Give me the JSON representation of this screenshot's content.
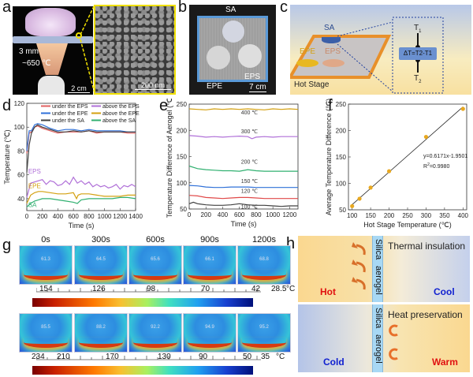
{
  "panels": {
    "a": {
      "label": "a",
      "thickness": "3 mm",
      "flame_temp": "~650 ℃",
      "scale_photo": "2 cm",
      "scale_sem": "200 nm"
    },
    "b": {
      "label": "b",
      "sample_sa": "SA",
      "sample_epe": "EPE",
      "sample_eps": "EPS",
      "scale": "7 cm"
    },
    "c": {
      "label": "c",
      "sample_sa": "SA",
      "sample_epe": "EPE",
      "sample_eps": "EPS",
      "stage": "Hot Stage",
      "t1": "T",
      "t1_sub": "1",
      "t2": "T",
      "t2_sub": "2",
      "formula": "ΔT=T2-T1",
      "colors": {
        "sa": "#3b5fa8",
        "epe": "#e8b820",
        "eps": "#e0a888",
        "stage": "#e8902a"
      }
    },
    "g": {
      "label": "g",
      "times": [
        "0s",
        "300s",
        "600s",
        "900s",
        "1200s"
      ],
      "row1_values": [
        "61.3",
        "64.5",
        "65.6",
        "66.1",
        "68.8"
      ],
      "row1_scale": [
        "154",
        "126",
        "98",
        "70",
        "42",
        "28.5",
        "°C"
      ],
      "row2_values": [
        "85.5",
        "88.2",
        "92.2",
        "94.9",
        "95.2"
      ],
      "row2_scale": [
        "234",
        "210",
        "170",
        "130",
        "90",
        "50",
        "35",
        "°C"
      ]
    },
    "h": {
      "label": "h",
      "top": {
        "title": "Thermal insulation",
        "left": "Hot",
        "right": "Cool",
        "aerogel_1": "Silica",
        "aerogel_2": "aerogel"
      },
      "bottom": {
        "title": "Heat preservation",
        "left": "Cold",
        "right": "Warm",
        "aerogel_1": "Silica",
        "aerogel_2": "aerogel"
      },
      "colors": {
        "hot": "#e01010",
        "cool": "#1020d0",
        "arrow": "#d8702a"
      }
    }
  },
  "chart_data": [
    {
      "id": "d",
      "label": "d",
      "type": "line",
      "title": "",
      "xlabel": "Time (s)",
      "ylabel": "Temperature (℃)",
      "xlim": [
        0,
        1400
      ],
      "ylim": [
        30,
        120
      ],
      "xticks": [
        0,
        200,
        400,
        600,
        800,
        1000,
        1200,
        1400
      ],
      "yticks": [
        40,
        60,
        80,
        100,
        120
      ],
      "legend": "top",
      "annotations": [
        {
          "text": "EPS",
          "x": 100,
          "y": 61,
          "color": "#b070d8"
        },
        {
          "text": "EPE",
          "x": 100,
          "y": 49,
          "color": "#d4a010"
        },
        {
          "text": "SA",
          "x": 100,
          "y": 33,
          "color": "#30b070"
        }
      ],
      "series": [
        {
          "name": "under the EPS",
          "color": "#e06060",
          "x": [
            0,
            30,
            60,
            100,
            140,
            200,
            300,
            400,
            500,
            600,
            700,
            800,
            900,
            1000,
            1100,
            1200,
            1300,
            1400
          ],
          "y": [
            78,
            95,
            96,
            100,
            101,
            99,
            97,
            95,
            96,
            96,
            96,
            97,
            95,
            96,
            96,
            96,
            95,
            95
          ]
        },
        {
          "name": "under the EPE",
          "color": "#2f70d8",
          "x": [
            0,
            30,
            60,
            100,
            140,
            200,
            300,
            400,
            500,
            600,
            700,
            800,
            900,
            1000,
            1100,
            1200,
            1300,
            1400
          ],
          "y": [
            80,
            97,
            97,
            102,
            103,
            102,
            99,
            97,
            98,
            98,
            97,
            98,
            97,
            97,
            97,
            97,
            96,
            96
          ]
        },
        {
          "name": "under the SA",
          "color": "#404040",
          "x": [
            0,
            30,
            60,
            100,
            140,
            200,
            300,
            400,
            500,
            600,
            700,
            800,
            900,
            1000,
            1100,
            1200,
            1300,
            1400
          ],
          "y": [
            62,
            85,
            95,
            100,
            102,
            100,
            98,
            96,
            96,
            97,
            96,
            97,
            96,
            96,
            96,
            96,
            96,
            96
          ]
        },
        {
          "name": "above the EPS",
          "color": "#b070d8",
          "x": [
            0,
            50,
            100,
            150,
            200,
            250,
            300,
            350,
            400,
            450,
            500,
            550,
            600,
            650,
            700,
            750,
            800,
            850,
            900,
            950,
            1000,
            1050,
            1100,
            1150,
            1200,
            1250,
            1300,
            1350,
            1400
          ],
          "y": [
            41,
            53,
            54,
            55,
            56,
            52,
            55,
            54,
            51,
            52,
            55,
            52,
            58,
            53,
            55,
            52,
            54,
            50,
            52,
            50,
            51,
            49,
            50,
            52,
            48,
            51,
            50,
            52,
            50
          ]
        },
        {
          "name": "above the EPE",
          "color": "#d4a010",
          "x": [
            0,
            50,
            100,
            150,
            200,
            300,
            400,
            500,
            600,
            640,
            660,
            700,
            800,
            900,
            1000,
            1100,
            1200,
            1300,
            1400
          ],
          "y": [
            36,
            43,
            45,
            46,
            46,
            45,
            44,
            44,
            45,
            40,
            43,
            44,
            44,
            43,
            42,
            42,
            42,
            43,
            43
          ]
        },
        {
          "name": "above the SA",
          "color": "#30b070",
          "x": [
            0,
            50,
            100,
            150,
            200,
            300,
            400,
            500,
            600,
            650,
            700,
            800,
            900,
            1000,
            1100,
            1200,
            1300,
            1400
          ],
          "y": [
            33,
            36,
            38,
            39,
            40,
            40,
            39,
            38,
            37,
            36,
            39,
            40,
            40,
            40,
            40,
            41,
            41,
            40
          ]
        }
      ]
    },
    {
      "id": "e",
      "label": "e",
      "type": "line",
      "title": "",
      "xlabel": "Time (s)",
      "ylabel": "Temperature Difference of Aerogel (℃)",
      "xlim": [
        0,
        1300
      ],
      "ylim": [
        50,
        250
      ],
      "xticks": [
        0,
        200,
        400,
        600,
        800,
        1000,
        1200
      ],
      "yticks": [
        50,
        100,
        150,
        200,
        250
      ],
      "series": [
        {
          "name": "400 ℃",
          "color": "#d4a010",
          "x": [
            0,
            100,
            200,
            300,
            400,
            500,
            600,
            700,
            800,
            900,
            1000,
            1100,
            1200,
            1300
          ],
          "y": [
            241,
            240,
            239,
            241,
            240,
            241,
            240,
            241,
            240,
            239,
            241,
            240,
            241,
            240
          ]
        },
        {
          "name": "300 ℃",
          "color": "#b070d8",
          "x": [
            0,
            100,
            200,
            300,
            400,
            500,
            600,
            700,
            750,
            800,
            900,
            1000,
            1100,
            1200,
            1300
          ],
          "y": [
            190,
            189,
            187,
            188,
            187,
            188,
            189,
            188,
            184,
            187,
            188,
            187,
            188,
            188,
            188
          ]
        },
        {
          "name": "200 ℃",
          "color": "#30b070",
          "x": [
            0,
            100,
            200,
            300,
            400,
            500,
            600,
            700,
            800,
            900,
            1000,
            1100,
            1200,
            1300
          ],
          "y": [
            132,
            127,
            125,
            124,
            123,
            123,
            122,
            125,
            123,
            122,
            122,
            122,
            122,
            122
          ]
        },
        {
          "name": "150 ℃",
          "color": "#2f70d8",
          "x": [
            0,
            100,
            200,
            300,
            400,
            500,
            600,
            700,
            800,
            900,
            1000,
            1100,
            1200,
            1300
          ],
          "y": [
            95,
            94,
            92,
            91,
            91,
            92,
            92,
            92,
            91,
            91,
            91,
            91,
            91,
            91
          ]
        },
        {
          "name": "120 ℃",
          "color": "#e04848",
          "x": [
            0,
            100,
            200,
            300,
            400,
            500,
            600,
            700,
            800,
            900,
            1000,
            1100,
            1200,
            1300
          ],
          "y": [
            76,
            75,
            72,
            71,
            70,
            71,
            72,
            72,
            71,
            70,
            70,
            70,
            70,
            70
          ]
        },
        {
          "name": "100 ℃",
          "color": "#404040",
          "x": [
            0,
            50,
            100,
            200,
            300,
            400,
            500,
            600,
            700,
            800,
            900,
            1000,
            1100,
            1200,
            1300
          ],
          "y": [
            60,
            63,
            60,
            58,
            57,
            57,
            58,
            60,
            58,
            57,
            57,
            56,
            55,
            56,
            56
          ]
        }
      ]
    },
    {
      "id": "f",
      "label": "f",
      "type": "scatter",
      "title": "",
      "xlabel": "Hot Stage Temperature (℃)",
      "ylabel": "Average Temperature Difference (℃)",
      "xlim": [
        90,
        410
      ],
      "ylim": [
        50,
        250
      ],
      "xticks": [
        100,
        150,
        200,
        250,
        300,
        350,
        400
      ],
      "yticks": [
        50,
        100,
        150,
        200,
        250
      ],
      "x": [
        100,
        120,
        150,
        200,
        300,
        400
      ],
      "y": [
        57,
        71,
        92,
        123,
        188,
        241
      ],
      "point_color": "#e8a820",
      "fit": {
        "slope": 0.6171,
        "intercept": -1.9501,
        "equation": "y=0.6171x-1.9501",
        "r2_label": "R",
        "r2_sup": "2",
        "r2_value": "=0.9980"
      }
    }
  ]
}
